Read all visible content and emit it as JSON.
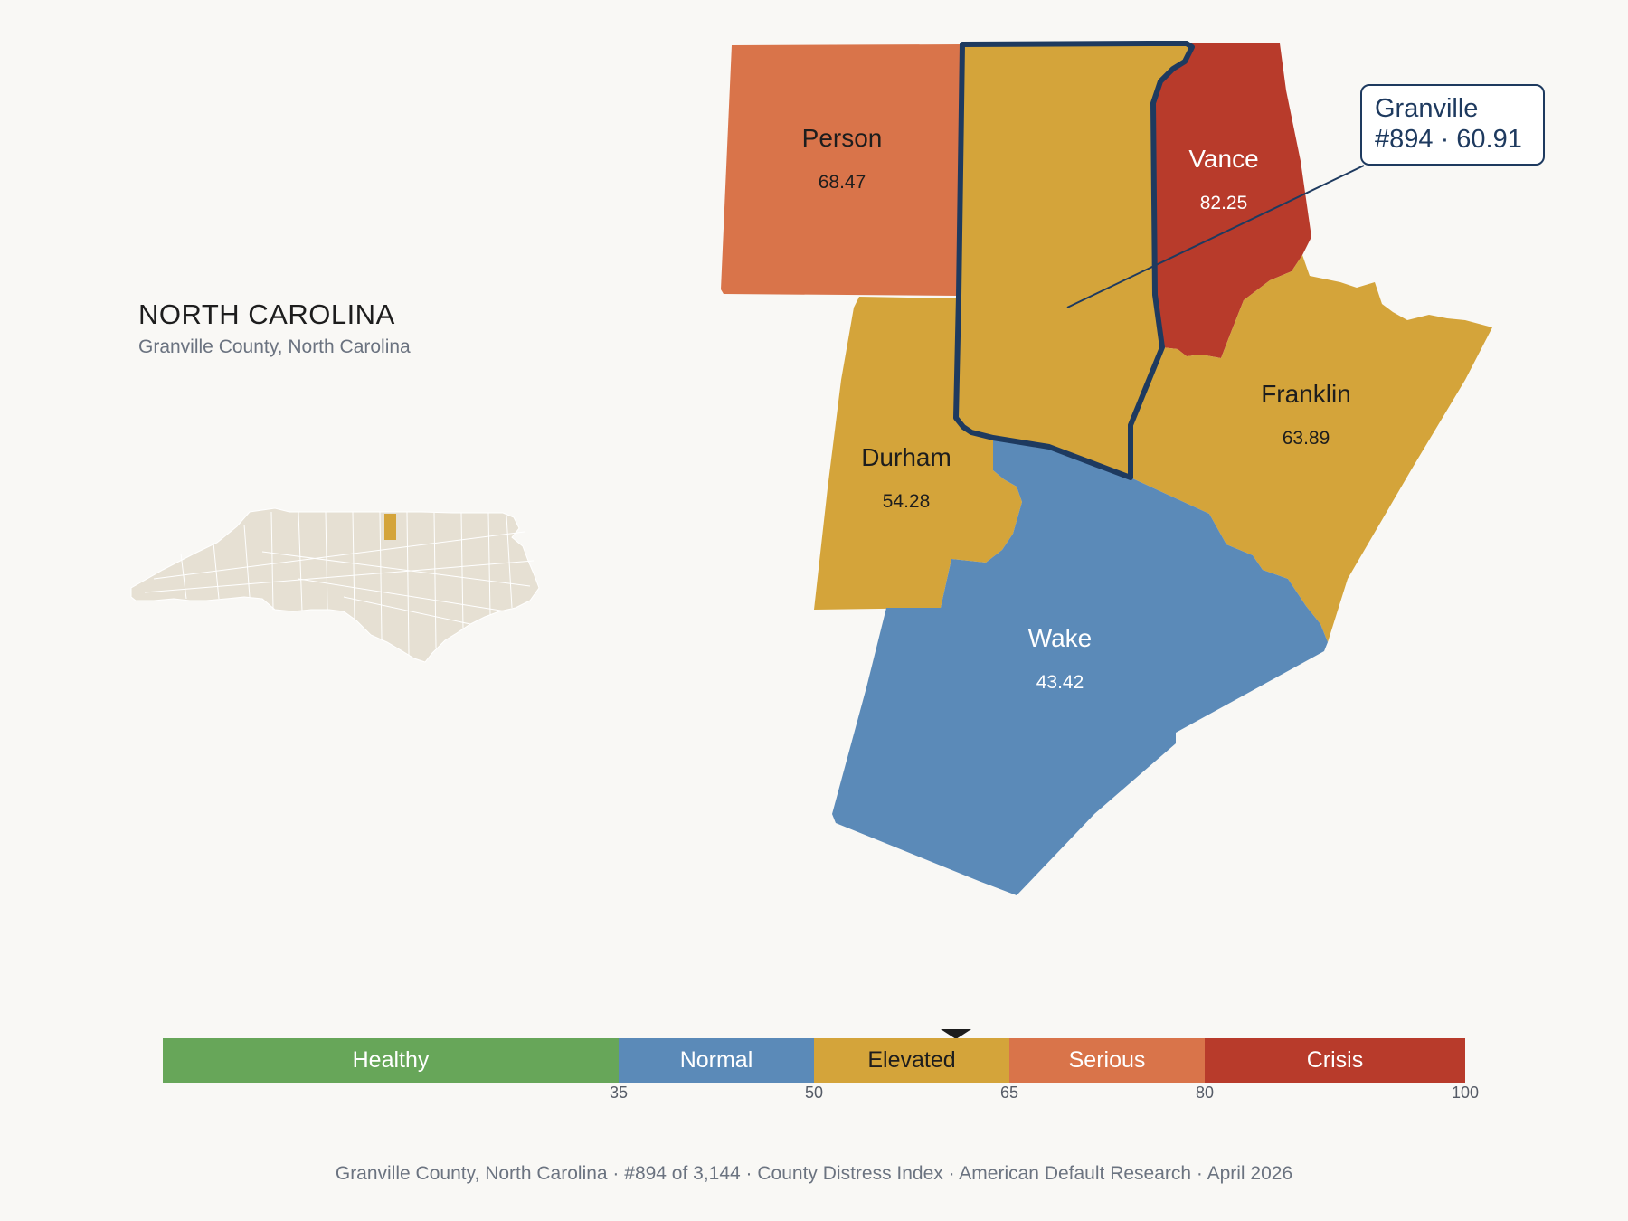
{
  "state": {
    "title": "NORTH CAROLINA",
    "subtitle": "Granville County, North Carolina"
  },
  "counties": [
    {
      "name": "Person",
      "value": "68.47",
      "color": "#d9744a",
      "text_color": "#1d1d1d"
    },
    {
      "name": "Vance",
      "value": "82.25",
      "color": "#b83b2b",
      "text_color": "#ffffff"
    },
    {
      "name": "Franklin",
      "value": "63.89",
      "color": "#d4a43a",
      "text_color": "#1d1d1d"
    },
    {
      "name": "Durham",
      "value": "54.28",
      "color": "#d4a43a",
      "text_color": "#1d1d1d"
    },
    {
      "name": "Wake",
      "value": "43.42",
      "color": "#5b8ab8",
      "text_color": "#ffffff"
    },
    {
      "name": "Granville",
      "value": "60.91",
      "color": "#d4a43a",
      "outline_color": "#1e3a5f"
    }
  ],
  "callout": {
    "line1": "Granville",
    "line2": "#894 · 60.91"
  },
  "legend": {
    "segments": [
      {
        "label": "Healthy",
        "color": "#67a659",
        "text_color": "#ffffff",
        "from": 0,
        "to": 35
      },
      {
        "label": "Normal",
        "color": "#5b8ab8",
        "text_color": "#ffffff",
        "from": 35,
        "to": 50
      },
      {
        "label": "Elevated",
        "color": "#d4a43a",
        "text_color": "#1d1d1d",
        "from": 50,
        "to": 65
      },
      {
        "label": "Serious",
        "color": "#d9744a",
        "text_color": "#ffffff",
        "from": 65,
        "to": 80
      },
      {
        "label": "Crisis",
        "color": "#b83b2b",
        "text_color": "#ffffff",
        "from": 80,
        "to": 100
      }
    ],
    "ticks": [
      "35",
      "50",
      "65",
      "80",
      "100"
    ],
    "marker_value": 60.91
  },
  "footer": "Granville County, North Carolina  ·  #894 of 3,144  ·  County Distress Index  ·  American Default Research  ·  April 2026"
}
